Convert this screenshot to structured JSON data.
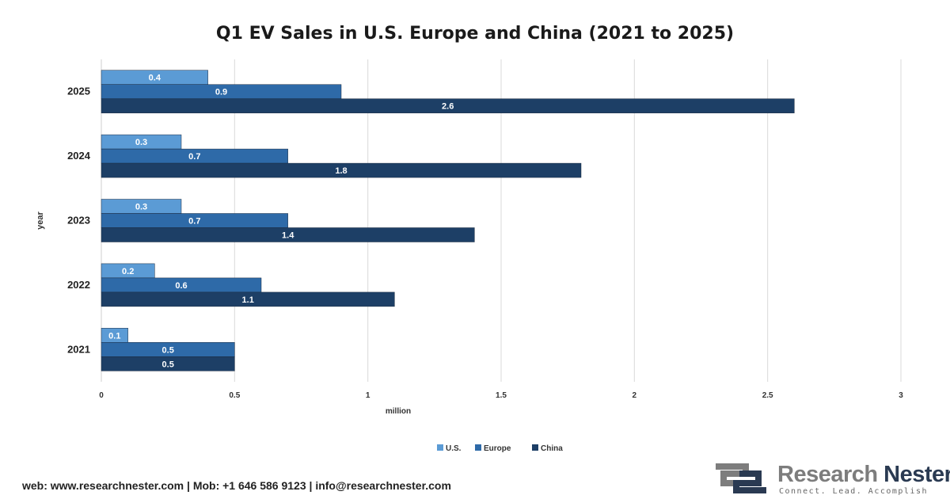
{
  "chart_data": {
    "type": "bar",
    "orientation": "horizontal",
    "title": "Q1 EV Sales in U.S. Europe and China (2021 to 2025)",
    "xlabel": "million",
    "ylabel": "year",
    "categories": [
      "2025",
      "2024",
      "2023",
      "2022",
      "2021"
    ],
    "series": [
      {
        "name": "U.S.",
        "color": "#5b9bd5",
        "values": [
          0.4,
          0.3,
          0.3,
          0.2,
          0.1
        ]
      },
      {
        "name": "Europe",
        "color": "#2e6aa8",
        "values": [
          0.9,
          0.7,
          0.7,
          0.6,
          0.5
        ]
      },
      {
        "name": "China",
        "color": "#1d3f66",
        "values": [
          2.6,
          1.8,
          1.4,
          1.1,
          0.5
        ]
      }
    ],
    "xlim": [
      0,
      3
    ],
    "xticks": [
      0,
      0.5,
      1,
      1.5,
      2,
      2.5,
      3
    ],
    "xtick_labels": [
      "0",
      "0.5",
      "1",
      "1.5",
      "2",
      "2.5",
      "3"
    ],
    "grid": true,
    "legend": "bottom-center"
  },
  "footer": {
    "contact": "web: www.researchnester.com | Mob: +1 646 586 9123 | info@researchnester.com"
  },
  "brand": {
    "name_part1": "Research ",
    "name_part2": "Nester",
    "tagline": "Connect. Lead. Accomplish"
  }
}
